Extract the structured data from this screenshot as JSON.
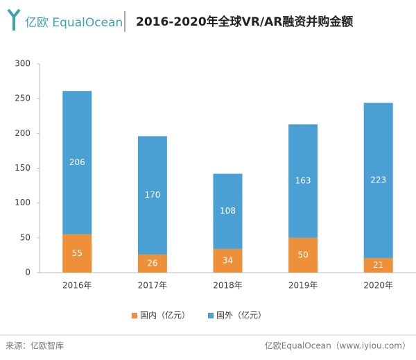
{
  "header": {
    "logo": "亿欧 EqualOcean"
  },
  "chart_data": {
    "type": "stacked-bar",
    "title": "2016-2020年全球VR/AR融资并购金额",
    "categories": [
      "2016年",
      "2017年",
      "2018年",
      "2019年",
      "2020年"
    ],
    "series": [
      {
        "name": "国内（亿元）",
        "color": "#ee8f3a",
        "values": [
          55,
          26,
          34,
          50,
          21
        ]
      },
      {
        "name": "国外（亿元）",
        "color": "#4a9fd3",
        "values": [
          206,
          170,
          108,
          163,
          223
        ]
      }
    ],
    "ylim": [
      0,
      300
    ],
    "yticks": [
      0,
      50,
      100,
      150,
      200,
      250,
      300
    ],
    "legend": "bottom"
  },
  "footer": {
    "source": "来源：亿欧智库",
    "brand": "亿欧EqualOcean（www.iyiou.com）"
  }
}
